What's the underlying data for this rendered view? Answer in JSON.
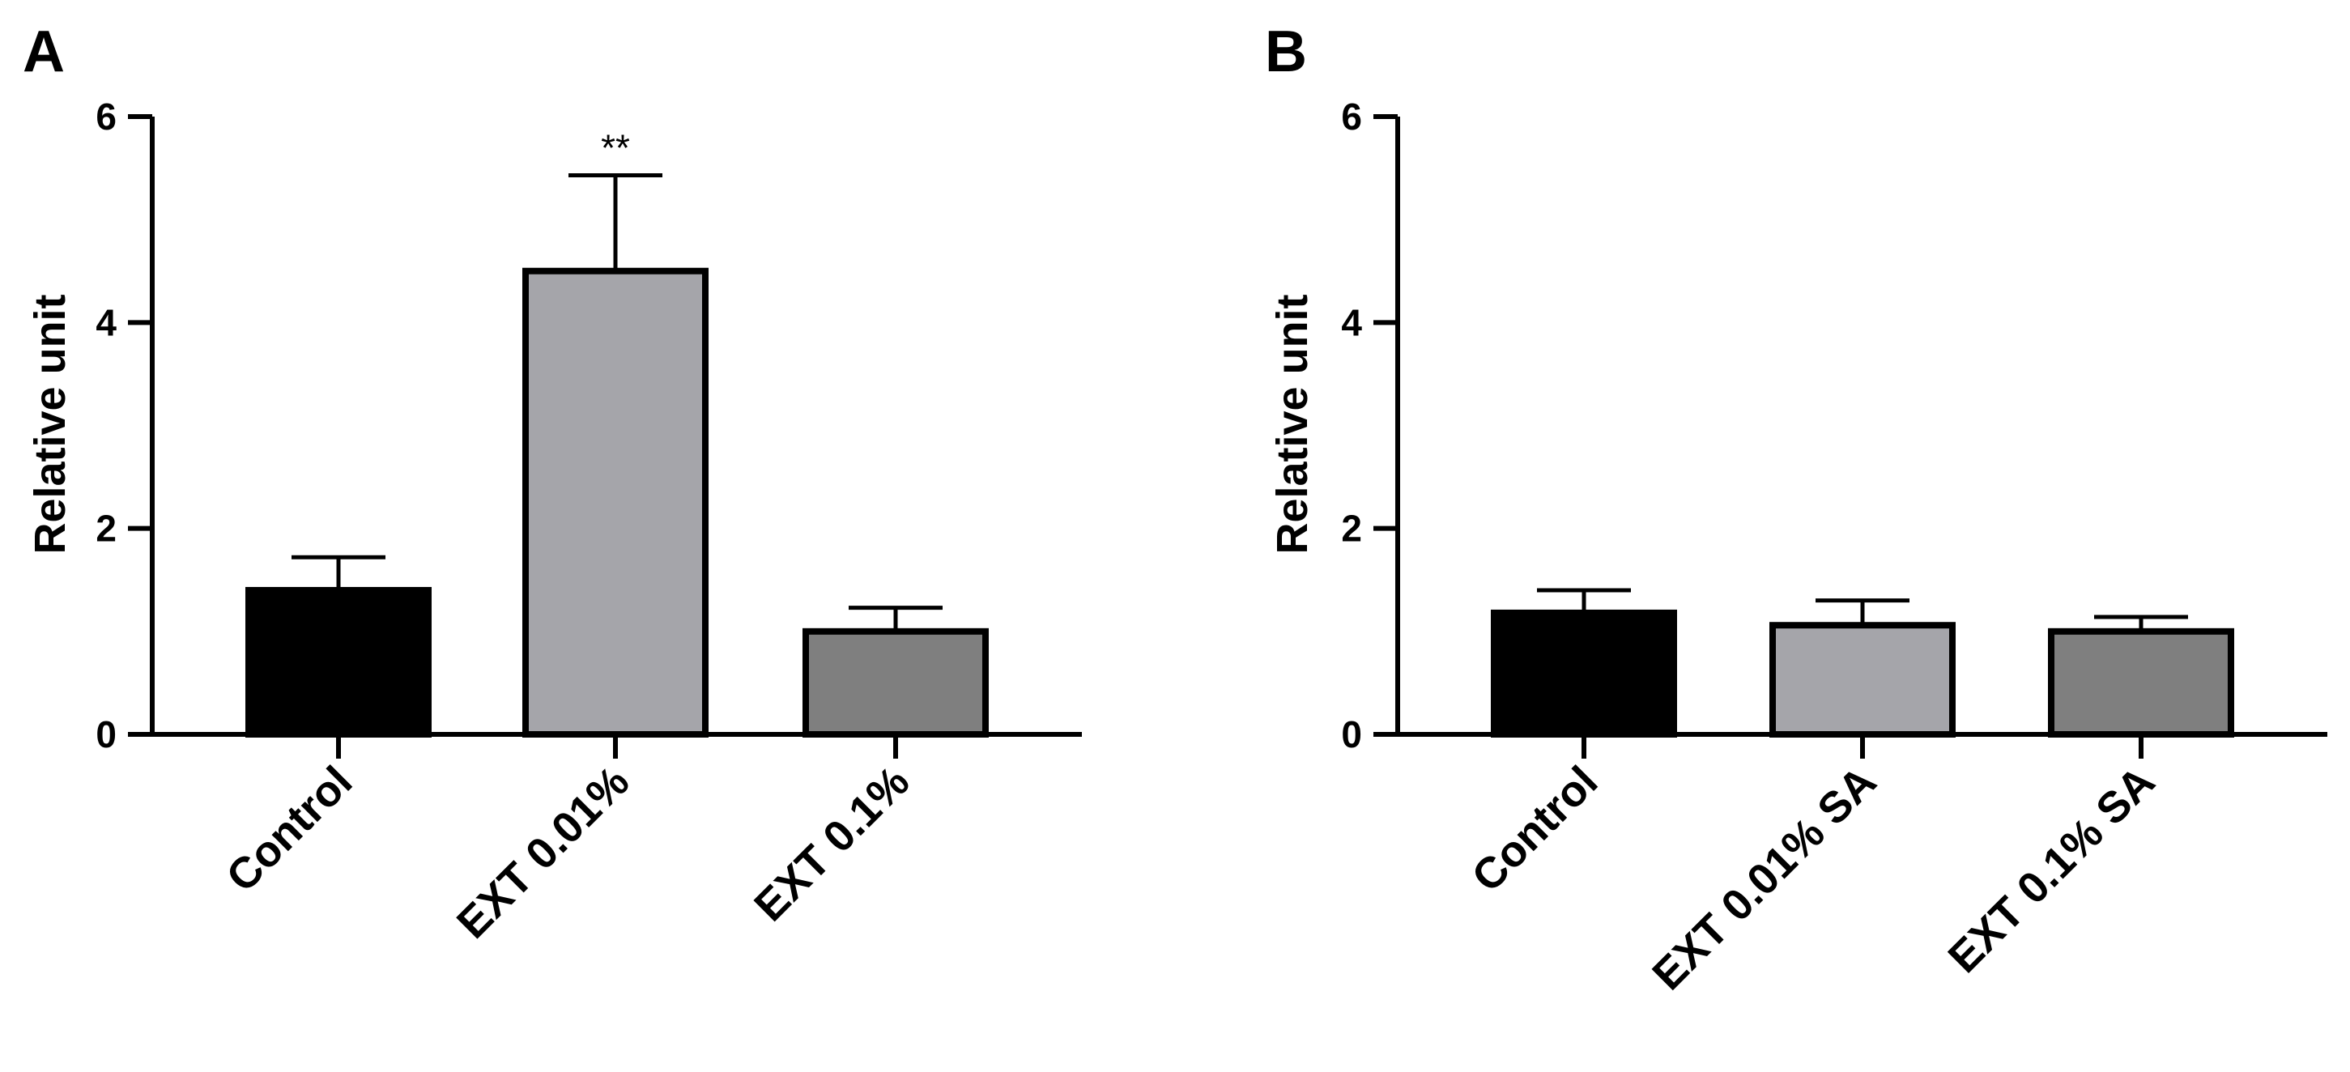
{
  "chart_data": [
    {
      "panel": "A",
      "type": "bar",
      "ylabel": "Relative unit",
      "xlabel": "",
      "ylim": [
        0,
        6
      ],
      "yticks": [
        "0",
        "2",
        "4",
        "6"
      ],
      "categories": [
        "Control",
        "EXT 0.01%",
        "EXT 0.1%"
      ],
      "values": [
        1.4,
        4.5,
        1.0
      ],
      "errors": [
        0.32,
        0.93,
        0.23
      ],
      "significance": [
        "",
        "**",
        ""
      ],
      "colors": [
        "#000000",
        "#a5a5aa",
        "#7f7f7f"
      ]
    },
    {
      "panel": "B",
      "type": "bar",
      "ylabel": "Relative unit",
      "xlabel": "",
      "ylim": [
        0,
        6
      ],
      "yticks": [
        "0",
        "2",
        "4",
        "6"
      ],
      "categories": [
        "Control",
        "EXT 0.01% SA",
        "EXT 0.1% SA"
      ],
      "values": [
        1.18,
        1.06,
        1.0
      ],
      "errors": [
        0.22,
        0.24,
        0.14
      ],
      "significance": [
        "",
        "",
        ""
      ],
      "colors": [
        "#000000",
        "#a5a5aa",
        "#7f7f7f"
      ]
    }
  ]
}
